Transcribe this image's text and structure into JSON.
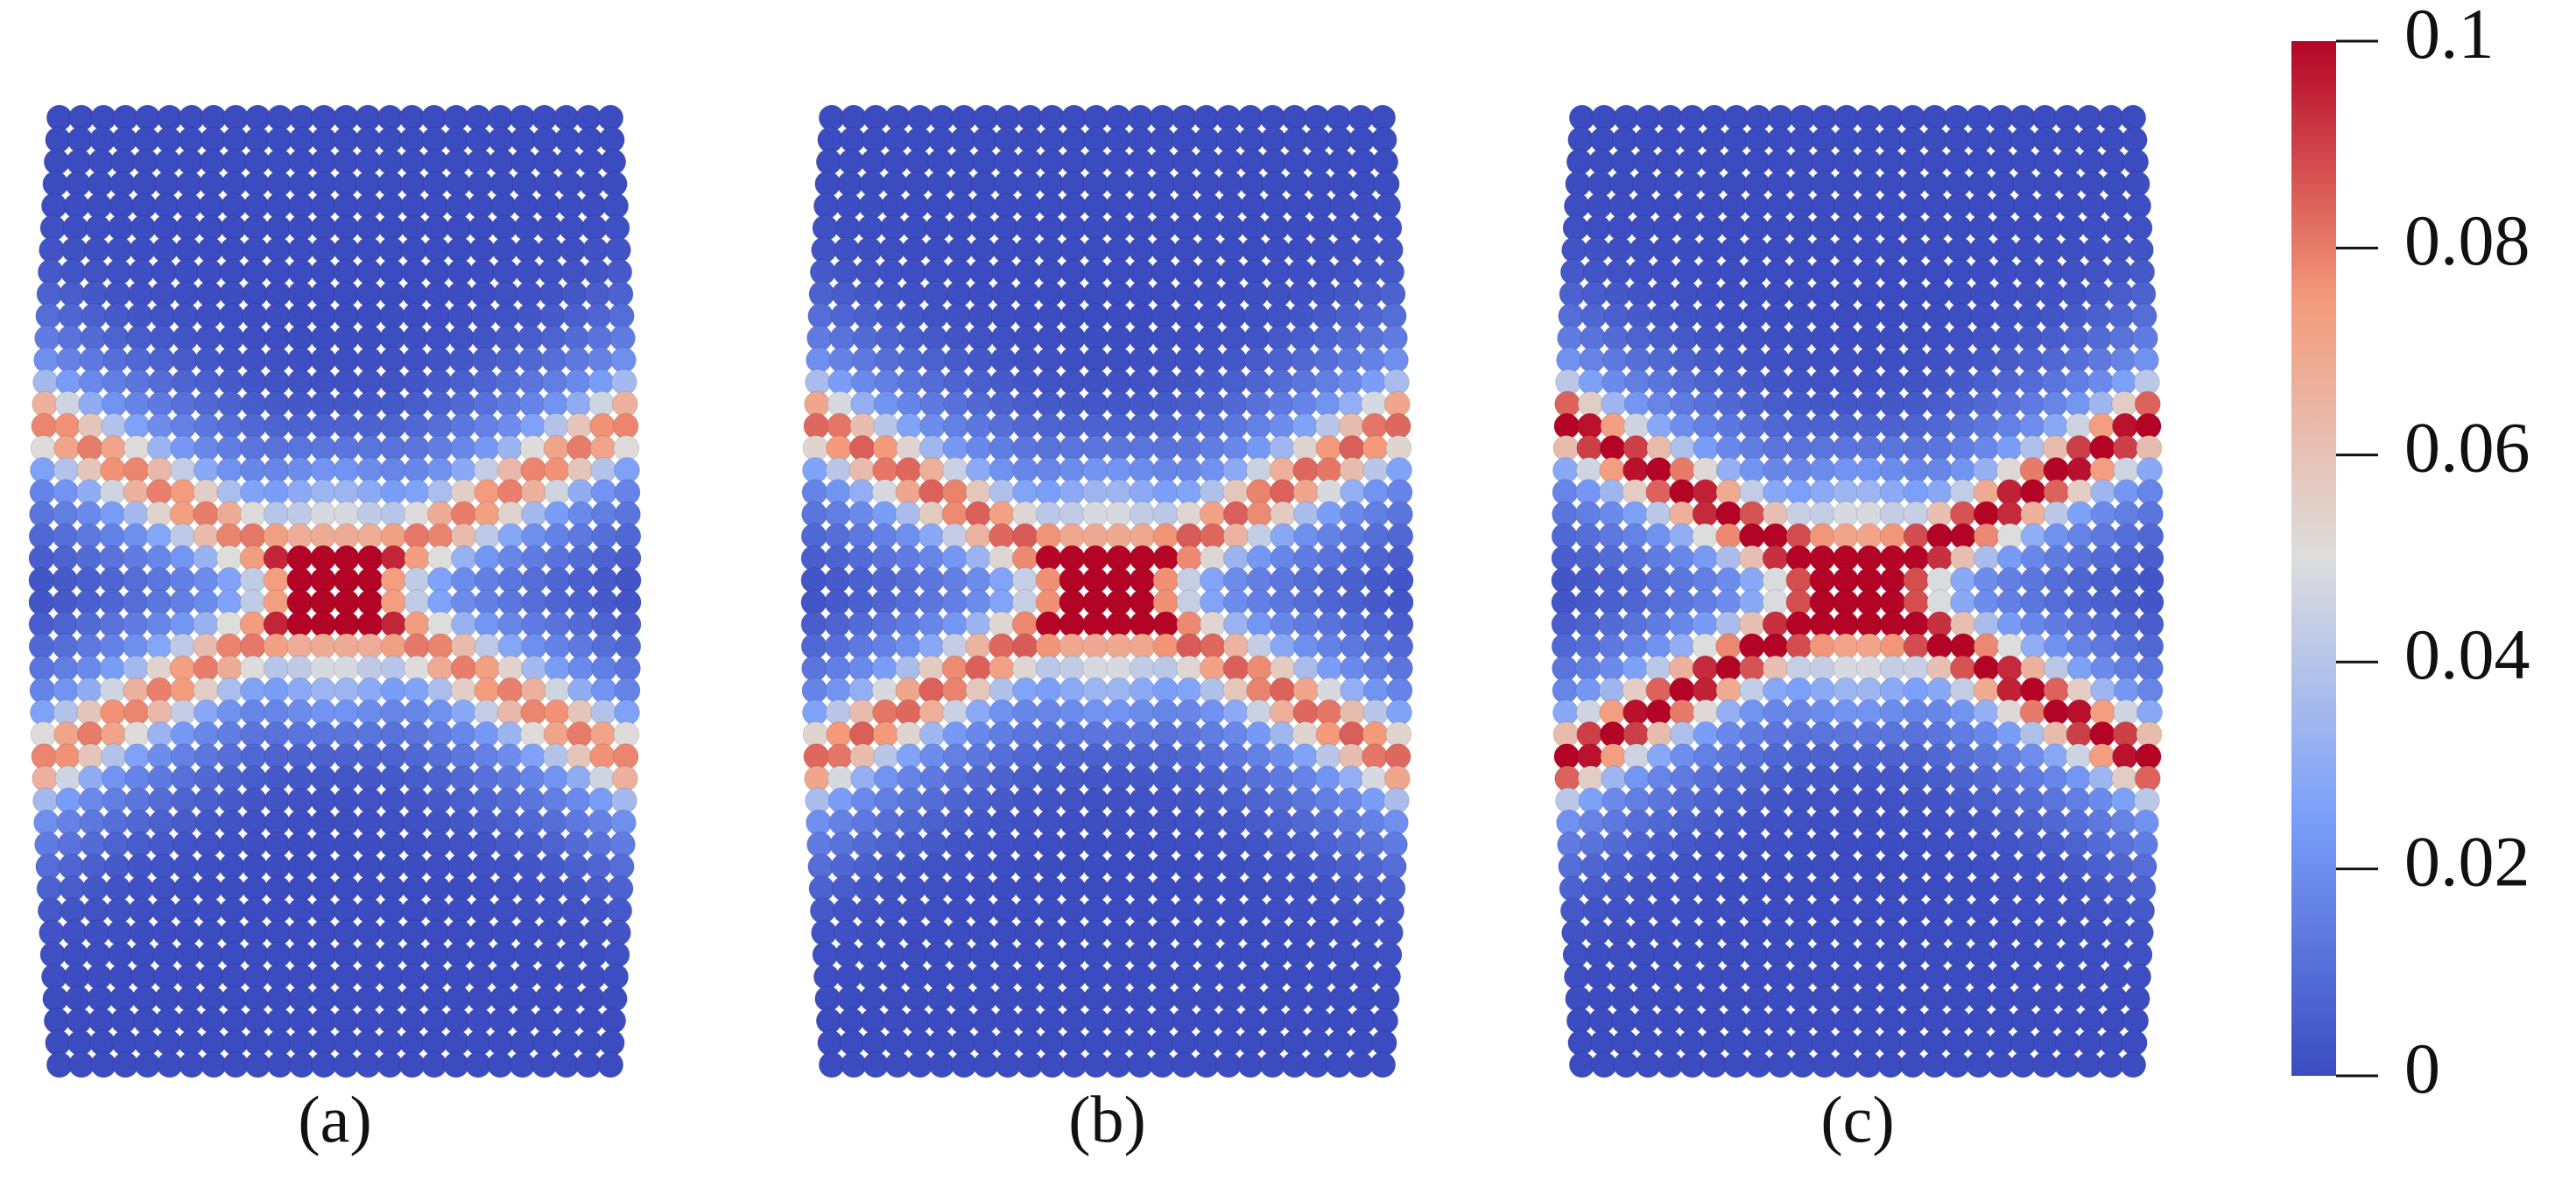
{
  "panels": [
    {
      "label": "(a)"
    },
    {
      "label": "(b)"
    },
    {
      "label": "(c)"
    }
  ],
  "colorbar": {
    "lim": [
      0,
      0.1
    ],
    "ticks": [
      0,
      0.02,
      0.04,
      0.06,
      0.08,
      0.1
    ]
  }
}
